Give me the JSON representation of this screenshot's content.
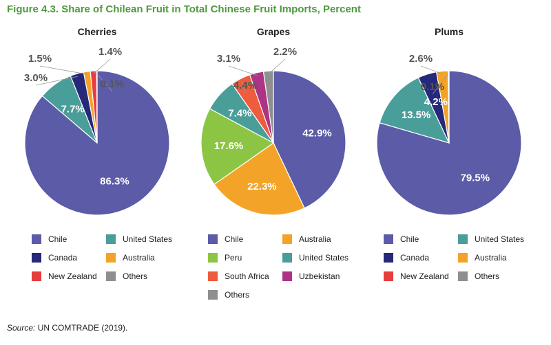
{
  "figure_title": "Figure 4.3. Share of Chilean Fruit in Total Chinese Fruit Imports, Percent",
  "source_label": "Source:",
  "source_text": " UN COMTRADE (2019).",
  "colors": {
    "Chile": "#5b5ba8",
    "United States": "#4a9e9a",
    "Canada": "#26287a",
    "Australia": "#f3a428",
    "New Zealand": "#e83d3f",
    "Others": "#8f8f8f",
    "Peru": "#8cc544",
    "South Africa": "#ee5b3d",
    "Uzbekistan": "#ad3484"
  },
  "chart_data": [
    {
      "type": "pie",
      "title": "Cherries",
      "slices": [
        {
          "name": "Chile",
          "value": 86.3,
          "label": "86.3%"
        },
        {
          "name": "United States",
          "value": 7.7,
          "label": "7.7%"
        },
        {
          "name": "Canada",
          "value": 3.0,
          "label": "3.0%"
        },
        {
          "name": "Australia",
          "value": 1.5,
          "label": "1.5%"
        },
        {
          "name": "New Zealand",
          "value": 1.4,
          "label": "1.4%"
        },
        {
          "name": "Others",
          "value": 0.1,
          "label": "0.1%"
        }
      ],
      "legend": [
        "Chile",
        "United States",
        "Canada",
        "Australia",
        "New Zealand",
        "Others"
      ]
    },
    {
      "type": "pie",
      "title": "Grapes",
      "slices": [
        {
          "name": "Chile",
          "value": 42.9,
          "label": "42.9%"
        },
        {
          "name": "Australia",
          "value": 22.3,
          "label": "22.3%"
        },
        {
          "name": "Peru",
          "value": 17.6,
          "label": "17.6%"
        },
        {
          "name": "United States",
          "value": 7.4,
          "label": "7.4%"
        },
        {
          "name": "South Africa",
          "value": 4.4,
          "label": "4.4%"
        },
        {
          "name": "Uzbekistan",
          "value": 3.1,
          "label": "3.1%"
        },
        {
          "name": "Others",
          "value": 2.2,
          "label": "2.2%"
        }
      ],
      "legend": [
        "Chile",
        "Australia",
        "Peru",
        "United States",
        "South Africa",
        "Uzbekistan",
        "Others"
      ]
    },
    {
      "type": "pie",
      "title": "Plums",
      "slices": [
        {
          "name": "Chile",
          "value": 79.5,
          "label": "79.5%"
        },
        {
          "name": "United States",
          "value": 13.5,
          "label": "13.5%"
        },
        {
          "name": "Canada",
          "value": 4.2,
          "label": "4.2%"
        },
        {
          "name": "Australia",
          "value": 2.6,
          "label": "2.6%"
        },
        {
          "name": "New Zealand",
          "value": 0.1,
          "label": "0.1%"
        },
        {
          "name": "Others",
          "value": 0.1,
          "label": ""
        }
      ],
      "legend": [
        "Chile",
        "United States",
        "Canada",
        "Australia",
        "New Zealand",
        "Others"
      ]
    }
  ]
}
